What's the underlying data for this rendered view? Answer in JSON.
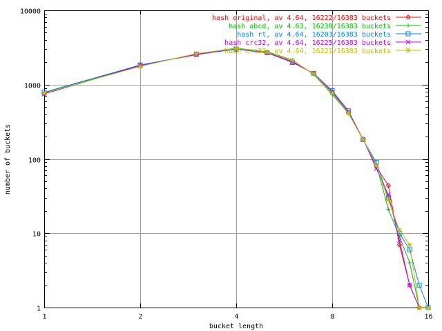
{
  "chart_data": {
    "type": "line",
    "title": "",
    "xlabel": "bucket length",
    "ylabel": "number of buckets",
    "xscale": "log2",
    "yscale": "log10",
    "xlim": [
      1,
      16
    ],
    "ylim": [
      1,
      10000
    ],
    "grid": true,
    "legend_position": "top-right",
    "x_tick_labels": [
      "1",
      "2",
      "4",
      "8",
      "16"
    ],
    "y_tick_labels": [
      "1",
      "10",
      "100",
      "1000",
      "10000"
    ],
    "series": [
      {
        "name": "hash original, av 4.64, 16222/16383 buckets",
        "color": "#ff0000",
        "marker": "diamond",
        "points": [
          [
            1,
            760
          ],
          [
            2,
            1830
          ],
          [
            3,
            2530
          ],
          [
            4,
            3030
          ],
          [
            5,
            2700
          ],
          [
            6,
            2050
          ],
          [
            7,
            1410
          ],
          [
            8,
            790
          ],
          [
            9,
            420
          ],
          [
            10,
            185
          ],
          [
            11,
            78
          ],
          [
            12,
            44
          ],
          [
            13,
            7
          ],
          [
            14,
            2
          ],
          [
            15,
            1
          ]
        ]
      },
      {
        "name": "hash abcd, av 4.63, 16230/16383 buckets",
        "color": "#00c000",
        "marker": "plus",
        "points": [
          [
            1,
            780
          ],
          [
            2,
            1780
          ],
          [
            3,
            2600
          ],
          [
            4,
            3100
          ],
          [
            5,
            2780
          ],
          [
            6,
            2150
          ],
          [
            7,
            1370
          ],
          [
            8,
            740
          ],
          [
            9,
            410
          ],
          [
            10,
            182
          ],
          [
            11,
            84
          ],
          [
            12,
            21
          ],
          [
            13,
            9
          ],
          [
            14,
            4
          ],
          [
            15,
            1
          ],
          [
            16,
            1
          ]
        ]
      },
      {
        "name": "hash rt, av 4.64, 16203/16383 buckets",
        "color": "#0080ff",
        "marker": "square",
        "points": [
          [
            1,
            790
          ],
          [
            2,
            1840
          ],
          [
            3,
            2560
          ],
          [
            4,
            2990
          ],
          [
            5,
            2680
          ],
          [
            6,
            1990
          ],
          [
            7,
            1420
          ],
          [
            8,
            830
          ],
          [
            9,
            445
          ],
          [
            10,
            182
          ],
          [
            11,
            90
          ],
          [
            12,
            30
          ],
          [
            13,
            10
          ],
          [
            14,
            6
          ],
          [
            15,
            2
          ],
          [
            16,
            1
          ]
        ]
      },
      {
        "name": "hash crc32, av 4.64, 16225/16383 buckets",
        "color": "#c000ff",
        "marker": "x",
        "points": [
          [
            1,
            750
          ],
          [
            2,
            1800
          ],
          [
            3,
            2550
          ],
          [
            4,
            3050
          ],
          [
            5,
            2690
          ],
          [
            6,
            2020
          ],
          [
            7,
            1400
          ],
          [
            8,
            800
          ],
          [
            9,
            430
          ],
          [
            10,
            185
          ],
          [
            11,
            74
          ],
          [
            12,
            33
          ],
          [
            13,
            8
          ],
          [
            14,
            2
          ],
          [
            15,
            1
          ]
        ]
      },
      {
        "name": "hash crc32, av 4.64, 16221/16383 buckets",
        "color": "#c0c000",
        "marker": "star",
        "points": [
          [
            1,
            770
          ],
          [
            2,
            1760
          ],
          [
            3,
            2620
          ],
          [
            4,
            3080
          ],
          [
            5,
            2740
          ],
          [
            6,
            2120
          ],
          [
            7,
            1390
          ],
          [
            8,
            770
          ],
          [
            9,
            415
          ],
          [
            10,
            183
          ],
          [
            11,
            82
          ],
          [
            12,
            28
          ],
          [
            13,
            11
          ],
          [
            14,
            7
          ],
          [
            15,
            1
          ],
          [
            16,
            1
          ]
        ]
      }
    ]
  }
}
